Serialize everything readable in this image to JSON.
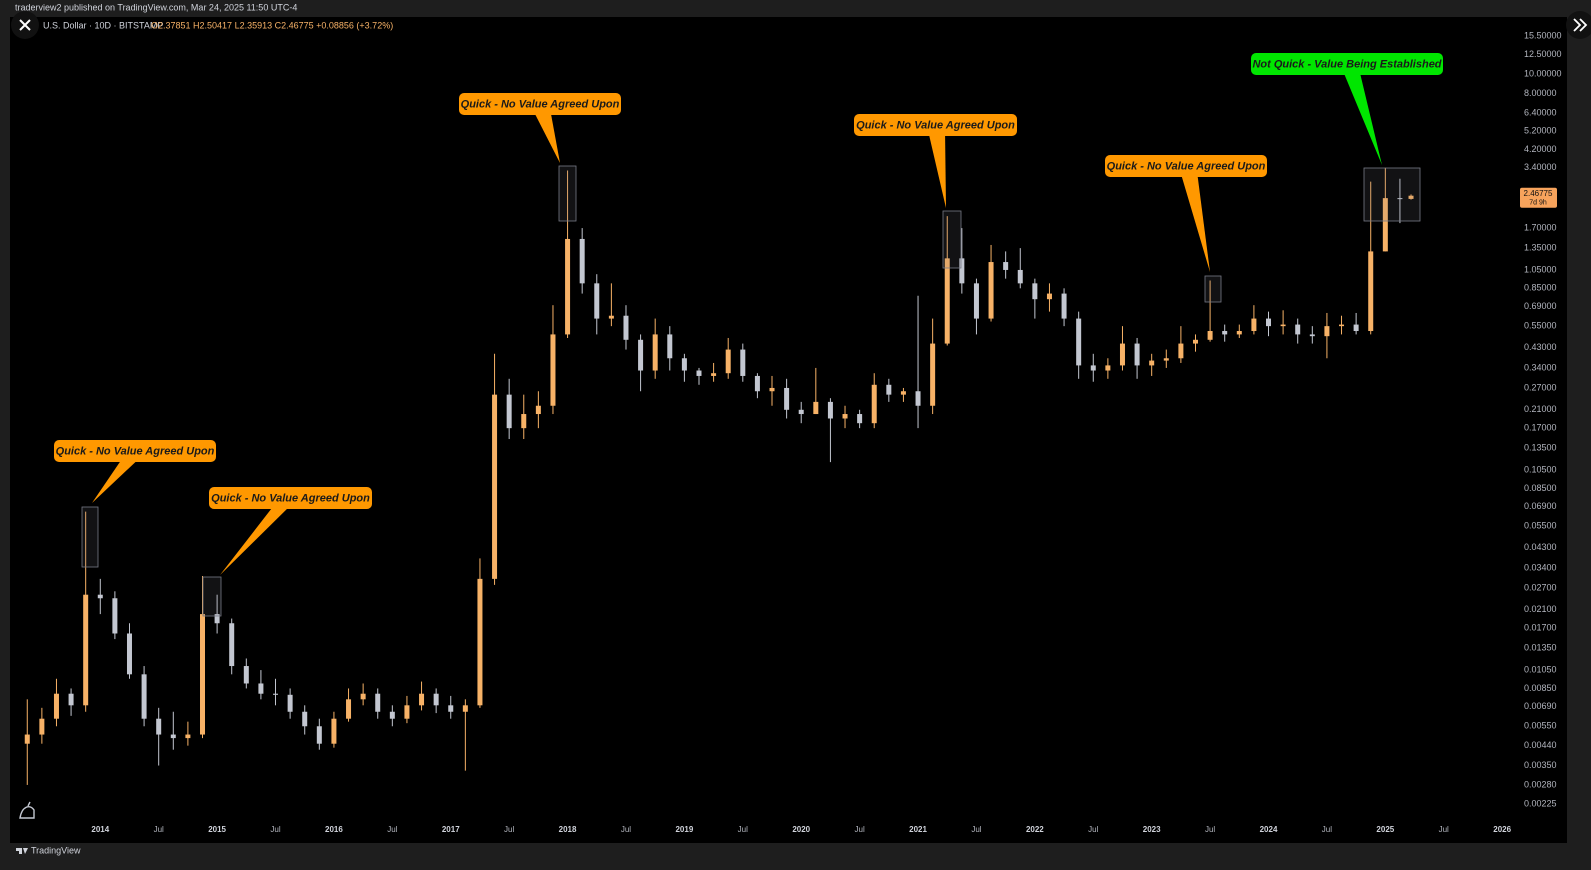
{
  "page": {
    "byline": "traderview2 published on TradingView.com, Mar 24, 2025 11:50 UTC-4",
    "brand": "TradingView"
  },
  "chart_data": {
    "type": "candlestick",
    "legend": {
      "symbol": "U.S. Dollar · 10D · BITSTAMP",
      "ohlc": "O2.37851 H2.50417 L2.35913 C2.46775 +0.08856 (+3.72%)"
    },
    "log_scale": true,
    "grid": false,
    "up_color": "#f7b267",
    "down_color": "#c3c7d1",
    "x": [
      2013.375,
      2013.5,
      2013.625,
      2013.75,
      2013.875,
      2014.0,
      2014.125,
      2014.25,
      2014.375,
      2014.5,
      2014.625,
      2014.75,
      2014.875,
      2015.0,
      2015.125,
      2015.25,
      2015.375,
      2015.5,
      2015.625,
      2015.75,
      2015.875,
      2016.0,
      2016.125,
      2016.25,
      2016.375,
      2016.5,
      2016.625,
      2016.75,
      2016.875,
      2017.0,
      2017.125,
      2017.25,
      2017.375,
      2017.5,
      2017.625,
      2017.75,
      2017.875,
      2018.0,
      2018.125,
      2018.25,
      2018.375,
      2018.5,
      2018.625,
      2018.75,
      2018.875,
      2019.0,
      2019.125,
      2019.25,
      2019.375,
      2019.5,
      2019.625,
      2019.75,
      2019.875,
      2020.0,
      2020.125,
      2020.25,
      2020.375,
      2020.5,
      2020.625,
      2020.75,
      2020.875,
      2021.0,
      2021.125,
      2021.25,
      2021.375,
      2021.5,
      2021.625,
      2021.75,
      2021.875,
      2022.0,
      2022.125,
      2022.25,
      2022.375,
      2022.5,
      2022.625,
      2022.75,
      2022.875,
      2023.0,
      2023.125,
      2023.25,
      2023.375,
      2023.5,
      2023.625,
      2023.75,
      2023.875,
      2024.0,
      2024.125,
      2024.25,
      2024.375,
      2024.5,
      2024.625,
      2024.75,
      2024.875,
      2025.0,
      2025.125,
      2025.22
    ],
    "open": [
      0.0045,
      0.005,
      0.006,
      0.008,
      0.007,
      0.025,
      0.024,
      0.016,
      0.01,
      0.006,
      0.005,
      0.0048,
      0.005,
      0.02,
      0.018,
      0.011,
      0.009,
      0.008,
      0.0079,
      0.0065,
      0.0055,
      0.0045,
      0.006,
      0.0075,
      0.008,
      0.0065,
      0.006,
      0.007,
      0.008,
      0.007,
      0.0065,
      0.007,
      0.03,
      0.25,
      0.17,
      0.2,
      0.22,
      0.5,
      1.5,
      0.9,
      0.6,
      0.62,
      0.47,
      0.33,
      0.5,
      0.38,
      0.33,
      0.31,
      0.32,
      0.42,
      0.31,
      0.26,
      0.27,
      0.21,
      0.2,
      0.23,
      0.19,
      0.2,
      0.18,
      0.28,
      0.25,
      0.26,
      0.22,
      0.45,
      1.2,
      0.9,
      0.6,
      1.15,
      1.05,
      0.9,
      0.75,
      0.8,
      0.6,
      0.35,
      0.33,
      0.35,
      0.45,
      0.35,
      0.37,
      0.38,
      0.45,
      0.47,
      0.52,
      0.5,
      0.52,
      0.6,
      0.55,
      0.56,
      0.5,
      0.49,
      0.55,
      0.56,
      0.52,
      1.3,
      2.4,
      2.37851
    ],
    "high": [
      0.0075,
      0.0068,
      0.0095,
      0.0085,
      0.065,
      0.03,
      0.026,
      0.018,
      0.011,
      0.0068,
      0.0065,
      0.0058,
      0.031,
      0.025,
      0.019,
      0.012,
      0.0105,
      0.0095,
      0.0085,
      0.007,
      0.006,
      0.0065,
      0.0085,
      0.009,
      0.0085,
      0.007,
      0.0078,
      0.0092,
      0.0085,
      0.0078,
      0.0075,
      0.038,
      0.4,
      0.3,
      0.25,
      0.26,
      0.7,
      3.3,
      1.7,
      1.0,
      0.9,
      0.7,
      0.5,
      0.6,
      0.55,
      0.4,
      0.34,
      0.36,
      0.48,
      0.45,
      0.32,
      0.31,
      0.3,
      0.23,
      0.34,
      0.24,
      0.22,
      0.21,
      0.32,
      0.3,
      0.27,
      0.78,
      0.6,
      1.95,
      1.7,
      0.95,
      1.4,
      1.3,
      1.35,
      0.95,
      0.9,
      0.85,
      0.65,
      0.4,
      0.38,
      0.55,
      0.48,
      0.4,
      0.42,
      0.55,
      0.5,
      0.93,
      0.56,
      0.56,
      0.7,
      0.65,
      0.66,
      0.6,
      0.55,
      0.64,
      0.62,
      0.64,
      2.9,
      3.4,
      3.0,
      2.50417
    ],
    "low": [
      0.0028,
      0.0045,
      0.0055,
      0.0062,
      0.0065,
      0.02,
      0.015,
      0.0095,
      0.0055,
      0.0035,
      0.0042,
      0.0044,
      0.0048,
      0.016,
      0.01,
      0.0085,
      0.0075,
      0.007,
      0.006,
      0.005,
      0.0042,
      0.0043,
      0.0058,
      0.007,
      0.006,
      0.0055,
      0.0057,
      0.0066,
      0.0064,
      0.006,
      0.0033,
      0.0068,
      0.028,
      0.15,
      0.15,
      0.17,
      0.2,
      0.48,
      0.8,
      0.5,
      0.55,
      0.42,
      0.26,
      0.3,
      0.33,
      0.29,
      0.28,
      0.29,
      0.3,
      0.29,
      0.24,
      0.22,
      0.19,
      0.18,
      0.2,
      0.115,
      0.17,
      0.17,
      0.17,
      0.23,
      0.23,
      0.17,
      0.2,
      0.44,
      0.8,
      0.5,
      0.58,
      0.95,
      0.85,
      0.6,
      0.65,
      0.55,
      0.3,
      0.29,
      0.3,
      0.33,
      0.3,
      0.31,
      0.34,
      0.36,
      0.41,
      0.46,
      0.46,
      0.48,
      0.5,
      0.49,
      0.5,
      0.45,
      0.45,
      0.38,
      0.5,
      0.5,
      0.5,
      1.3,
      1.8,
      2.35913
    ],
    "close": [
      0.005,
      0.006,
      0.008,
      0.007,
      0.025,
      0.024,
      0.016,
      0.01,
      0.006,
      0.005,
      0.0048,
      0.005,
      0.02,
      0.018,
      0.011,
      0.009,
      0.008,
      0.0079,
      0.0065,
      0.0055,
      0.0045,
      0.006,
      0.0075,
      0.008,
      0.0065,
      0.006,
      0.007,
      0.008,
      0.007,
      0.0065,
      0.007,
      0.03,
      0.25,
      0.17,
      0.2,
      0.22,
      0.5,
      1.5,
      0.9,
      0.6,
      0.62,
      0.47,
      0.33,
      0.5,
      0.38,
      0.33,
      0.31,
      0.32,
      0.42,
      0.31,
      0.26,
      0.27,
      0.21,
      0.2,
      0.23,
      0.19,
      0.2,
      0.18,
      0.28,
      0.25,
      0.26,
      0.22,
      0.45,
      1.2,
      0.9,
      0.6,
      1.15,
      1.05,
      0.9,
      0.75,
      0.8,
      0.6,
      0.35,
      0.33,
      0.35,
      0.45,
      0.35,
      0.37,
      0.38,
      0.45,
      0.47,
      0.52,
      0.5,
      0.52,
      0.6,
      0.55,
      0.56,
      0.5,
      0.49,
      0.55,
      0.56,
      0.52,
      1.3,
      2.4,
      2.38,
      2.46775
    ],
    "xlim": [
      2013.27,
      2026.11
    ],
    "xticks": [
      2014,
      {
        "value": 2014.5,
        "label": "Jul"
      },
      2015,
      {
        "value": 2015.5,
        "label": "Jul"
      },
      2016,
      {
        "value": 2016.5,
        "label": "Jul"
      },
      2017,
      {
        "value": 2017.5,
        "label": "Jul"
      },
      2018,
      {
        "value": 2018.5,
        "label": "Jul"
      },
      2019,
      {
        "value": 2019.5,
        "label": "Jul"
      },
      2020,
      {
        "value": 2020.5,
        "label": "Jul"
      },
      2021,
      {
        "value": 2021.5,
        "label": "Jul"
      },
      2022,
      {
        "value": 2022.5,
        "label": "Jul"
      },
      2023,
      {
        "value": 2023.5,
        "label": "Jul"
      },
      2024,
      {
        "value": 2024.5,
        "label": "Jul"
      },
      2025,
      {
        "value": 2025.5,
        "label": "Jul"
      },
      2026
    ],
    "ylim": [
      0.00187,
      19.3
    ],
    "yticks": [
      {
        "value": 15.5,
        "label": "15.50000"
      },
      {
        "value": 12.5,
        "label": "12.50000"
      },
      {
        "value": 10,
        "label": "10.00000"
      },
      {
        "value": 8,
        "label": "8.00000"
      },
      {
        "value": 6.4,
        "label": "6.40000"
      },
      {
        "value": 5.2,
        "label": "5.20000"
      },
      {
        "value": 4.2,
        "label": "4.20000"
      },
      {
        "value": 3.4,
        "label": "3.40000"
      },
      {
        "value": 1.7,
        "label": "1.70000"
      },
      {
        "value": 1.35,
        "label": "1.35000"
      },
      {
        "value": 1.05,
        "label": "1.05000"
      },
      {
        "value": 0.85,
        "label": "0.85000"
      },
      {
        "value": 0.69,
        "label": "0.69000"
      },
      {
        "value": 0.55,
        "label": "0.55000"
      },
      {
        "value": 0.43,
        "label": "0.43000"
      },
      {
        "value": 0.34,
        "label": "0.34000"
      },
      {
        "value": 0.27,
        "label": "0.27000"
      },
      {
        "value": 0.21,
        "label": "0.21000"
      },
      {
        "value": 0.17,
        "label": "0.17000"
      },
      {
        "value": 0.135,
        "label": "0.13500"
      },
      {
        "value": 0.105,
        "label": "0.10500"
      },
      {
        "value": 0.085,
        "label": "0.08500"
      },
      {
        "value": 0.069,
        "label": "0.06900"
      },
      {
        "value": 0.055,
        "label": "0.05500"
      },
      {
        "value": 0.043,
        "label": "0.04300"
      },
      {
        "value": 0.034,
        "label": "0.03400"
      },
      {
        "value": 0.027,
        "label": "0.02700"
      },
      {
        "value": 0.021,
        "label": "0.02100"
      },
      {
        "value": 0.017,
        "label": "0.01700"
      },
      {
        "value": 0.0135,
        "label": "0.01350"
      },
      {
        "value": 0.0105,
        "label": "0.01050"
      },
      {
        "value": 0.0085,
        "label": "0.00850"
      },
      {
        "value": 0.0069,
        "label": "0.00690"
      },
      {
        "value": 0.0055,
        "label": "0.00550"
      },
      {
        "value": 0.0044,
        "label": "0.00440"
      },
      {
        "value": 0.0035,
        "label": "0.00350"
      },
      {
        "value": 0.0028,
        "label": "0.00280"
      },
      {
        "value": 0.00225,
        "label": "0.00225"
      }
    ],
    "last_price": {
      "label": "2.46775",
      "countdown": "7d 9h",
      "color": "#f7a35c"
    },
    "annotations": [
      {
        "text": "Quick - No Value Agreed Upon",
        "color": "#ff9800"
      },
      {
        "text": "Quick - No Value Agreed Upon",
        "color": "#ff9800"
      },
      {
        "text": "Quick - No Value Agreed Upon",
        "color": "#ff9800"
      },
      {
        "text": "Quick - No Value Agreed Upon",
        "color": "#ff9800"
      },
      {
        "text": "Quick - No Value Agreed Upon",
        "color": "#ff9800"
      },
      {
        "text": "Not Quick - Value Being Established",
        "color": "#00e600"
      }
    ]
  }
}
